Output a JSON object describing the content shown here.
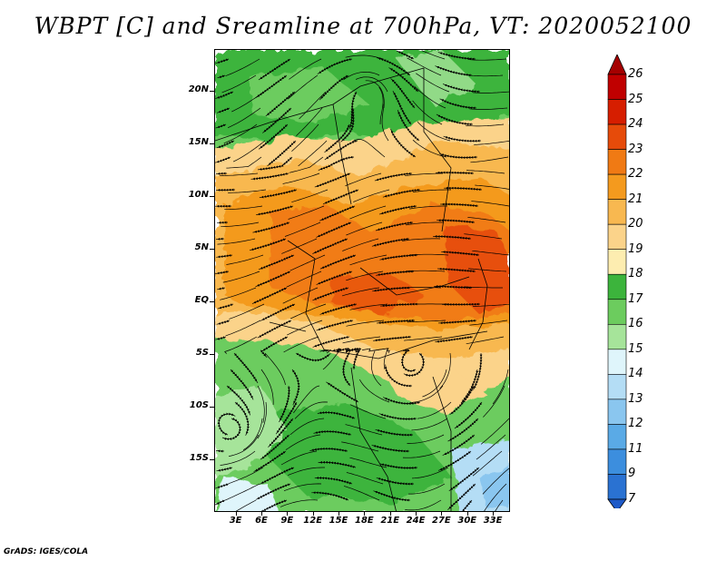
{
  "title": "WBPT [C] and Sreamline at 700hPa, VT: 2020052100",
  "footer": "GrADS: IGES/COLA",
  "map": {
    "lat_labels": [
      "20N",
      "15N",
      "10N",
      "5N",
      "EQ",
      "5S",
      "10S",
      "15S"
    ],
    "lat_values": [
      20,
      15,
      10,
      5,
      0,
      -5,
      -10,
      -15
    ],
    "lon_labels": [
      "3E",
      "6E",
      "9E",
      "12E",
      "15E",
      "18E",
      "21E",
      "24E",
      "27E",
      "30E",
      "33E"
    ],
    "lon_values": [
      3,
      6,
      9,
      12,
      15,
      18,
      21,
      24,
      27,
      30,
      33
    ],
    "lon_range": [
      0.5,
      35
    ],
    "lat_range": [
      -20,
      24
    ]
  },
  "colorbar": {
    "levels": [
      "26",
      "25",
      "24",
      "23",
      "22",
      "21",
      "20",
      "19",
      "18",
      "17",
      "16",
      "15",
      "14",
      "13",
      "12",
      "11",
      "9",
      "7"
    ],
    "colors": {
      "above_26": "#a50000",
      "25_26": "#c00000",
      "24_25": "#d61e00",
      "23_24": "#e64b0a",
      "22_23": "#f07a14",
      "21_22": "#f49a1e",
      "20_21": "#f8b850",
      "19_20": "#fbd38a",
      "18_19": "#fdedb0",
      "17_18": "#3cb43c",
      "16_17": "#6ccc5e",
      "15_16": "#a6e49a",
      "14_15": "#dff5fb",
      "13_14": "#b4ddf5",
      "12_13": "#8ac6ef",
      "11_12": "#5aaae6",
      "9_11": "#3c8ede",
      "7_9": "#2a72d2",
      "below_7": "#1e5ac8"
    }
  }
}
